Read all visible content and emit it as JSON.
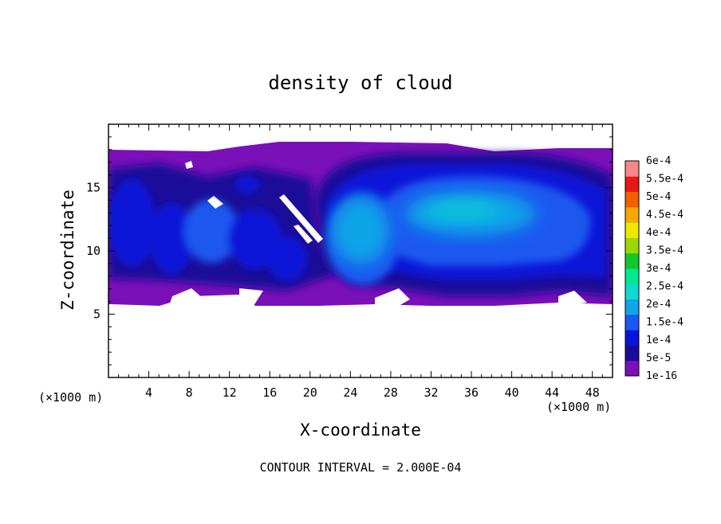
{
  "chart_data": {
    "type": "heatmap",
    "title": "density of cloud",
    "xlabel": "X-coordinate",
    "ylabel": "Z-coordinate",
    "x_unit": "(×1000 m)",
    "y_unit": "(×1000 m)",
    "xlim": [
      0,
      50
    ],
    "ylim": [
      0,
      20
    ],
    "x_ticks": [
      "4",
      "8",
      "12",
      "16",
      "20",
      "24",
      "28",
      "32",
      "36",
      "40",
      "44",
      "48"
    ],
    "y_ticks": [
      "5",
      "10",
      "15"
    ],
    "footer": "CONTOUR INTERVAL = 2.000E-04",
    "colorbar": {
      "labels": [
        "6e-4",
        "5.5e-4",
        "5e-4",
        "4.5e-4",
        "4e-4",
        "3.5e-4",
        "3e-4",
        "2.5e-4",
        "2e-4",
        "1.5e-4",
        "1e-4",
        "5e-5",
        "1e-16"
      ],
      "levels": [
        1e-16,
        5e-05,
        0.0001,
        0.00015,
        0.0002,
        0.00025,
        0.0003,
        0.00035,
        0.0004,
        0.00045,
        0.0005,
        0.00055,
        0.0006
      ],
      "colors": [
        "#7a10b8",
        "#1a0a98",
        "#0a14d8",
        "#1c58f0",
        "#10a4e8",
        "#10d8d0",
        "#00e890",
        "#10c828",
        "#9ad800",
        "#ece800",
        "#f4a800",
        "#f06000",
        "#e81818",
        "#f88888"
      ]
    },
    "cloud_layer": {
      "base_z": 6,
      "top_z": 18.5
    },
    "anvil": {
      "x_range": [
        21,
        50
      ],
      "z_range": [
        6,
        18.5
      ],
      "peak_value": 0.000175,
      "core_center": [
        34,
        13.5
      ]
    }
  }
}
